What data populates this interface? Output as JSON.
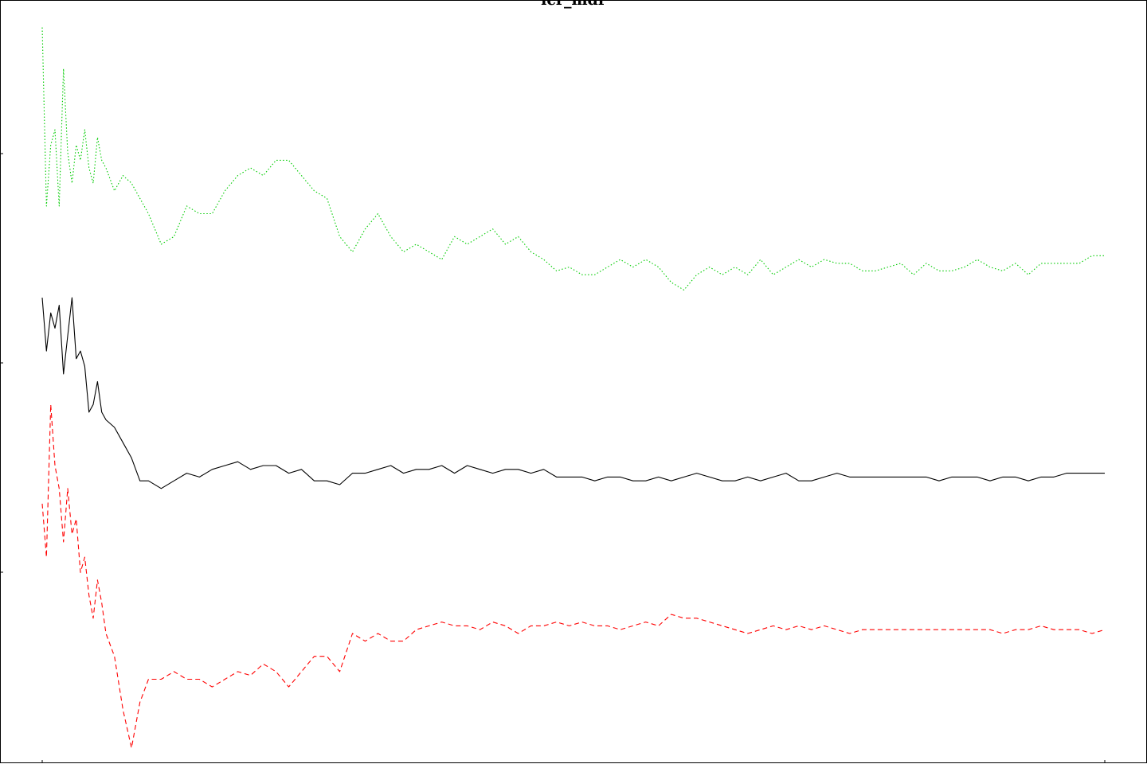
{
  "chart_data": {
    "type": "line",
    "title": "lcr_mdr",
    "xlabel": "",
    "ylabel": "",
    "xlim": [
      0,
      500
    ],
    "ylim": [
      0,
      1
    ],
    "grid": false,
    "legend": "none",
    "series": [
      {
        "color": "#00cc00",
        "dash": "dotted",
        "x": [
          0,
          2,
          4,
          6,
          8,
          10,
          12,
          14,
          16,
          18,
          20,
          22,
          24,
          26,
          28,
          30,
          34,
          38,
          42,
          46,
          50,
          56,
          62,
          68,
          74,
          80,
          86,
          92,
          98,
          104,
          110,
          116,
          122,
          128,
          134,
          140,
          146,
          152,
          158,
          164,
          170,
          176,
          182,
          188,
          194,
          200,
          206,
          212,
          218,
          224,
          230,
          236,
          242,
          248,
          254,
          260,
          266,
          272,
          278,
          284,
          290,
          296,
          302,
          308,
          314,
          320,
          326,
          332,
          338,
          344,
          350,
          356,
          362,
          368,
          374,
          380,
          386,
          392,
          398,
          404,
          410,
          416,
          422,
          428,
          434,
          440,
          446,
          452,
          458,
          464,
          470,
          476,
          482,
          488,
          494,
          500
        ],
        "values": [
          0.964,
          0.73,
          0.81,
          0.83,
          0.73,
          0.91,
          0.8,
          0.76,
          0.81,
          0.79,
          0.83,
          0.78,
          0.76,
          0.82,
          0.79,
          0.78,
          0.75,
          0.77,
          0.76,
          0.74,
          0.72,
          0.68,
          0.69,
          0.73,
          0.72,
          0.72,
          0.75,
          0.77,
          0.78,
          0.77,
          0.79,
          0.79,
          0.77,
          0.75,
          0.74,
          0.69,
          0.67,
          0.7,
          0.72,
          0.69,
          0.67,
          0.68,
          0.67,
          0.66,
          0.69,
          0.68,
          0.69,
          0.7,
          0.68,
          0.69,
          0.67,
          0.66,
          0.645,
          0.65,
          0.64,
          0.64,
          0.65,
          0.66,
          0.65,
          0.66,
          0.65,
          0.63,
          0.62,
          0.64,
          0.65,
          0.64,
          0.65,
          0.64,
          0.66,
          0.64,
          0.65,
          0.66,
          0.65,
          0.66,
          0.655,
          0.655,
          0.645,
          0.645,
          0.65,
          0.655,
          0.64,
          0.655,
          0.645,
          0.645,
          0.65,
          0.66,
          0.65,
          0.645,
          0.655,
          0.64,
          0.655,
          0.655,
          0.655,
          0.655,
          0.665,
          0.665
        ]
      },
      {
        "color": "#000000",
        "dash": "solid",
        "x": [
          0,
          2,
          4,
          6,
          8,
          10,
          12,
          14,
          16,
          18,
          20,
          22,
          24,
          26,
          28,
          30,
          34,
          38,
          42,
          46,
          50,
          56,
          62,
          68,
          74,
          80,
          86,
          92,
          98,
          104,
          110,
          116,
          122,
          128,
          134,
          140,
          146,
          152,
          158,
          164,
          170,
          176,
          182,
          188,
          194,
          200,
          206,
          212,
          218,
          224,
          230,
          236,
          242,
          248,
          254,
          260,
          266,
          272,
          278,
          284,
          290,
          296,
          302,
          308,
          314,
          320,
          326,
          332,
          338,
          344,
          350,
          356,
          362,
          368,
          374,
          380,
          386,
          392,
          398,
          404,
          410,
          416,
          422,
          428,
          434,
          440,
          446,
          452,
          458,
          464,
          470,
          476,
          482,
          488,
          494,
          500
        ],
        "values": [
          0.61,
          0.54,
          0.59,
          0.57,
          0.6,
          0.51,
          0.56,
          0.61,
          0.53,
          0.54,
          0.52,
          0.46,
          0.47,
          0.5,
          0.46,
          0.45,
          0.44,
          0.42,
          0.4,
          0.37,
          0.37,
          0.36,
          0.37,
          0.38,
          0.375,
          0.385,
          0.39,
          0.395,
          0.385,
          0.39,
          0.39,
          0.38,
          0.385,
          0.37,
          0.37,
          0.365,
          0.38,
          0.38,
          0.385,
          0.39,
          0.38,
          0.385,
          0.385,
          0.39,
          0.38,
          0.39,
          0.385,
          0.38,
          0.385,
          0.385,
          0.38,
          0.385,
          0.375,
          0.375,
          0.375,
          0.37,
          0.375,
          0.375,
          0.37,
          0.37,
          0.375,
          0.37,
          0.375,
          0.38,
          0.375,
          0.37,
          0.37,
          0.375,
          0.37,
          0.375,
          0.38,
          0.37,
          0.37,
          0.375,
          0.38,
          0.375,
          0.375,
          0.375,
          0.375,
          0.375,
          0.375,
          0.375,
          0.37,
          0.375,
          0.375,
          0.375,
          0.37,
          0.375,
          0.375,
          0.37,
          0.375,
          0.375,
          0.38,
          0.38,
          0.38,
          0.38
        ]
      },
      {
        "color": "#ff0000",
        "dash": "dashed",
        "x": [
          0,
          2,
          4,
          6,
          8,
          10,
          12,
          14,
          16,
          18,
          20,
          22,
          24,
          26,
          28,
          30,
          34,
          38,
          42,
          46,
          50,
          56,
          62,
          68,
          74,
          80,
          86,
          92,
          98,
          104,
          110,
          116,
          122,
          128,
          134,
          140,
          146,
          152,
          158,
          164,
          170,
          176,
          182,
          188,
          194,
          200,
          206,
          212,
          218,
          224,
          230,
          236,
          242,
          248,
          254,
          260,
          266,
          272,
          278,
          284,
          290,
          296,
          302,
          308,
          314,
          320,
          326,
          332,
          338,
          344,
          350,
          356,
          362,
          368,
          374,
          380,
          386,
          392,
          398,
          404,
          410,
          416,
          422,
          428,
          434,
          440,
          446,
          452,
          458,
          464,
          470,
          476,
          482,
          488,
          494,
          500
        ],
        "values": [
          0.34,
          0.27,
          0.47,
          0.39,
          0.36,
          0.29,
          0.36,
          0.3,
          0.32,
          0.25,
          0.27,
          0.22,
          0.19,
          0.24,
          0.21,
          0.17,
          0.14,
          0.07,
          0.02,
          0.08,
          0.11,
          0.11,
          0.12,
          0.11,
          0.11,
          0.1,
          0.11,
          0.12,
          0.115,
          0.13,
          0.12,
          0.1,
          0.12,
          0.14,
          0.14,
          0.12,
          0.17,
          0.16,
          0.17,
          0.16,
          0.16,
          0.175,
          0.18,
          0.185,
          0.18,
          0.18,
          0.175,
          0.185,
          0.18,
          0.17,
          0.18,
          0.18,
          0.185,
          0.18,
          0.185,
          0.18,
          0.18,
          0.175,
          0.18,
          0.185,
          0.18,
          0.195,
          0.19,
          0.19,
          0.185,
          0.18,
          0.175,
          0.17,
          0.175,
          0.18,
          0.175,
          0.18,
          0.175,
          0.18,
          0.175,
          0.17,
          0.175,
          0.175,
          0.175,
          0.175,
          0.175,
          0.175,
          0.175,
          0.175,
          0.175,
          0.175,
          0.175,
          0.17,
          0.175,
          0.175,
          0.18,
          0.175,
          0.175,
          0.175,
          0.17,
          0.175
        ]
      }
    ]
  }
}
